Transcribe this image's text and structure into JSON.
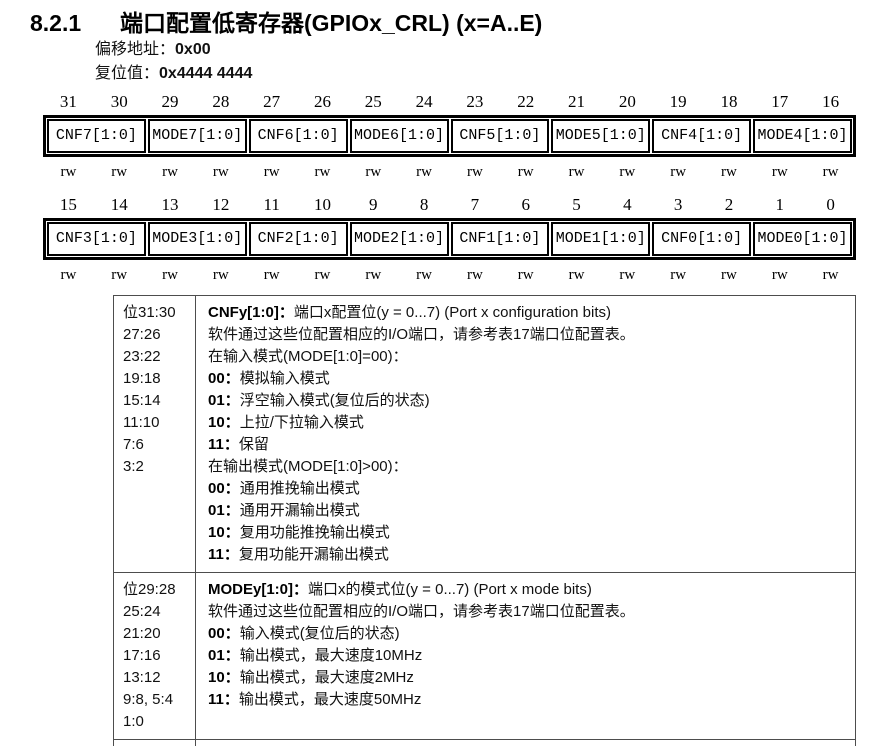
{
  "page": {
    "section_number": "8.2.1",
    "title": "端口配置低寄存器(GPIOx_CRL) (x=A..E)",
    "offset_label": "偏移地址：",
    "offset_value": "0x00",
    "reset_label": "复位值：",
    "reset_value": "0x4444 4444"
  },
  "register_diagram": {
    "rows": [
      {
        "bits": [
          "31",
          "30",
          "29",
          "28",
          "27",
          "26",
          "25",
          "24",
          "23",
          "22",
          "21",
          "20",
          "19",
          "18",
          "17",
          "16"
        ],
        "fields": [
          "CNF7[1:0]",
          "MODE7[1:0]",
          "CNF6[1:0]",
          "MODE6[1:0]",
          "CNF5[1:0]",
          "MODE5[1:0]",
          "CNF4[1:0]",
          "MODE4[1:0]"
        ],
        "access": [
          "rw",
          "rw",
          "rw",
          "rw",
          "rw",
          "rw",
          "rw",
          "rw",
          "rw",
          "rw",
          "rw",
          "rw",
          "rw",
          "rw",
          "rw",
          "rw"
        ]
      },
      {
        "bits": [
          "15",
          "14",
          "13",
          "12",
          "11",
          "10",
          "9",
          "8",
          "7",
          "6",
          "5",
          "4",
          "3",
          "2",
          "1",
          "0"
        ],
        "fields": [
          "CNF3[1:0]",
          "MODE3[1:0]",
          "CNF2[1:0]",
          "MODE2[1:0]",
          "CNF1[1:0]",
          "MODE1[1:0]",
          "CNF0[1:0]",
          "MODE0[1:0]"
        ],
        "access": [
          "rw",
          "rw",
          "rw",
          "rw",
          "rw",
          "rw",
          "rw",
          "rw",
          "rw",
          "rw",
          "rw",
          "rw",
          "rw",
          "rw",
          "rw",
          "rw"
        ]
      }
    ]
  },
  "description_table": {
    "rows": [
      {
        "bit_lines": [
          "位31:30",
          "27:26",
          "23:22",
          "19:18",
          "15:14",
          "11:10",
          "7:6",
          "3:2"
        ],
        "desc_lines": [
          {
            "b": "CNFy[1:0]：",
            "t": "端口x配置位(y = 0...7) (Port x configuration bits)"
          },
          {
            "b": "",
            "t": "软件通过这些位配置相应的I/O端口，请参考表17端口位配置表。"
          },
          {
            "b": "",
            "t": "在输入模式(MODE[1:0]=00)："
          },
          {
            "b": "00：",
            "t": "模拟输入模式"
          },
          {
            "b": "01：",
            "t": "浮空输入模式(复位后的状态)"
          },
          {
            "b": "10：",
            "t": "上拉/下拉输入模式"
          },
          {
            "b": "11：",
            "t": "保留"
          },
          {
            "b": "",
            "t": "在输出模式(MODE[1:0]>00)："
          },
          {
            "b": "00：",
            "t": "通用推挽输出模式"
          },
          {
            "b": "01：",
            "t": "通用开漏输出模式"
          },
          {
            "b": "10：",
            "t": "复用功能推挽输出模式"
          },
          {
            "b": "11：",
            "t": "复用功能开漏输出模式"
          }
        ]
      },
      {
        "bit_lines": [
          "位29:28",
          "25:24",
          "21:20",
          "17:16",
          "13:12",
          "9:8, 5:4",
          "1:0"
        ],
        "desc_lines": [
          {
            "b": "MODEy[1:0]：",
            "t": "端口x的模式位(y = 0...7) (Port x mode bits)"
          },
          {
            "b": "",
            "t": "软件通过这些位配置相应的I/O端口，请参考表17端口位配置表。"
          },
          {
            "b": "00：",
            "t": "输入模式(复位后的状态)"
          },
          {
            "b": "01：",
            "t": "输出模式，最大速度10MHz"
          },
          {
            "b": "10：",
            "t": "输出模式，最大速度2MHz"
          },
          {
            "b": "11：",
            "t": "输出模式，最大速度50MHz"
          }
        ]
      }
    ]
  }
}
